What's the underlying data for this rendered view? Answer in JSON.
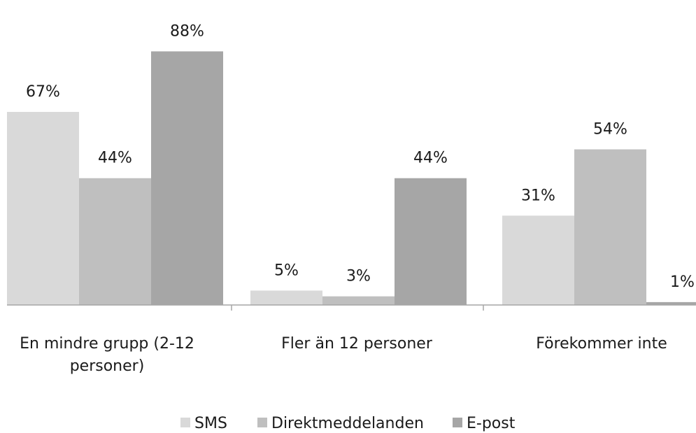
{
  "chart_data": {
    "type": "bar",
    "categories": [
      "En mindre grupp (2-12 personer)",
      "Fler än 12 personer",
      "Förekommer inte"
    ],
    "category_lines": [
      [
        "En mindre grupp (2-12",
        "personer)"
      ],
      [
        "Fler än 12 personer"
      ],
      [
        "Förekommer inte"
      ]
    ],
    "series": [
      {
        "name": "SMS",
        "values": [
          67,
          5,
          31
        ],
        "labels": [
          "67%",
          "5%",
          "31%"
        ],
        "color": "#d9d9d9"
      },
      {
        "name": "Direktmeddelanden",
        "values": [
          44,
          3,
          54
        ],
        "labels": [
          "44%",
          "3%",
          "54%"
        ],
        "color": "#bfbfbf"
      },
      {
        "name": "E-post",
        "values": [
          88,
          44,
          1
        ],
        "labels": [
          "88%",
          "44%",
          "1%"
        ],
        "color": "#a6a6a6"
      }
    ],
    "ylim": [
      0,
      100
    ],
    "grid": false,
    "legend": "bottom",
    "axis_color": "#a6a6a6"
  }
}
